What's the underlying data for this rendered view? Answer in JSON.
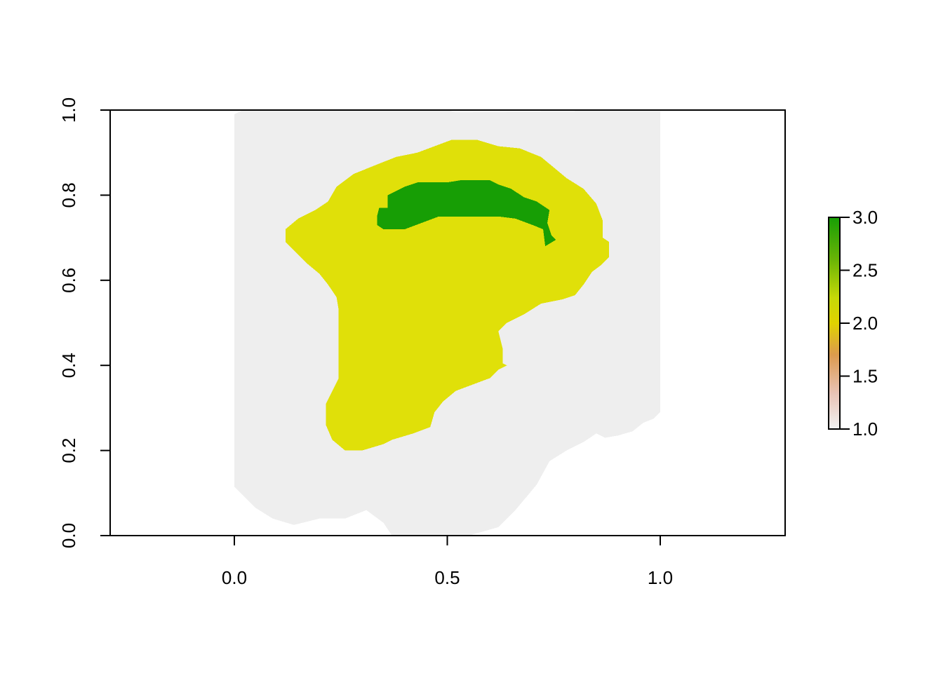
{
  "chart_data": {
    "type": "heatmap",
    "title": "",
    "xlabel": "",
    "ylabel": "",
    "xlim": [
      -0.29,
      1.29
    ],
    "ylim": [
      0,
      1
    ],
    "x_ticks": [
      "0.0",
      "0.5",
      "1.0"
    ],
    "y_ticks": [
      "0.0",
      "0.2",
      "0.4",
      "0.6",
      "0.8",
      "1.0"
    ],
    "grid": false,
    "legend": {
      "position": "right",
      "range": [
        1,
        3
      ],
      "ticks": [
        "1.0",
        "1.5",
        "2.0",
        "2.5",
        "3.0"
      ]
    },
    "colors": {
      "class_1": "#eeeeee",
      "class_2": "#e0e009",
      "class_3": "#179e05",
      "frame": "#000000"
    },
    "classes": [
      {
        "value": 1,
        "polygon": [
          [
            0.0,
            0.99
          ],
          [
            0.02,
            1.0
          ],
          [
            0.5,
            1.0
          ],
          [
            0.52,
            0.995
          ],
          [
            1.0,
            1.0
          ],
          [
            1.0,
            0.29
          ],
          [
            0.985,
            0.275
          ],
          [
            0.96,
            0.265
          ],
          [
            0.935,
            0.245
          ],
          [
            0.9,
            0.235
          ],
          [
            0.87,
            0.23
          ],
          [
            0.85,
            0.24
          ],
          [
            0.82,
            0.22
          ],
          [
            0.78,
            0.2
          ],
          [
            0.74,
            0.175
          ],
          [
            0.71,
            0.12
          ],
          [
            0.66,
            0.06
          ],
          [
            0.62,
            0.02
          ],
          [
            0.55,
            0.0
          ],
          [
            0.37,
            0.0
          ],
          [
            0.35,
            0.03
          ],
          [
            0.31,
            0.06
          ],
          [
            0.26,
            0.04
          ],
          [
            0.2,
            0.04
          ],
          [
            0.14,
            0.025
          ],
          [
            0.09,
            0.04
          ],
          [
            0.05,
            0.065
          ],
          [
            0.02,
            0.095
          ],
          [
            0.0,
            0.115
          ]
        ]
      },
      {
        "value": 2,
        "polygon": [
          [
            0.12,
            0.72
          ],
          [
            0.15,
            0.745
          ],
          [
            0.19,
            0.765
          ],
          [
            0.22,
            0.785
          ],
          [
            0.24,
            0.82
          ],
          [
            0.28,
            0.85
          ],
          [
            0.33,
            0.87
          ],
          [
            0.38,
            0.89
          ],
          [
            0.43,
            0.9
          ],
          [
            0.47,
            0.915
          ],
          [
            0.51,
            0.93
          ],
          [
            0.57,
            0.93
          ],
          [
            0.62,
            0.915
          ],
          [
            0.67,
            0.91
          ],
          [
            0.72,
            0.89
          ],
          [
            0.75,
            0.865
          ],
          [
            0.78,
            0.84
          ],
          [
            0.82,
            0.815
          ],
          [
            0.85,
            0.78
          ],
          [
            0.865,
            0.74
          ],
          [
            0.865,
            0.7
          ],
          [
            0.88,
            0.69
          ],
          [
            0.88,
            0.655
          ],
          [
            0.86,
            0.635
          ],
          [
            0.84,
            0.62
          ],
          [
            0.82,
            0.59
          ],
          [
            0.8,
            0.565
          ],
          [
            0.77,
            0.555
          ],
          [
            0.72,
            0.545
          ],
          [
            0.68,
            0.52
          ],
          [
            0.64,
            0.5
          ],
          [
            0.62,
            0.48
          ],
          [
            0.63,
            0.44
          ],
          [
            0.63,
            0.405
          ],
          [
            0.64,
            0.4
          ],
          [
            0.62,
            0.39
          ],
          [
            0.6,
            0.37
          ],
          [
            0.56,
            0.355
          ],
          [
            0.52,
            0.34
          ],
          [
            0.49,
            0.315
          ],
          [
            0.47,
            0.29
          ],
          [
            0.46,
            0.255
          ],
          [
            0.42,
            0.24
          ],
          [
            0.37,
            0.225
          ],
          [
            0.35,
            0.215
          ],
          [
            0.3,
            0.2
          ],
          [
            0.26,
            0.2
          ],
          [
            0.23,
            0.225
          ],
          [
            0.215,
            0.26
          ],
          [
            0.215,
            0.31
          ],
          [
            0.23,
            0.34
          ],
          [
            0.245,
            0.37
          ],
          [
            0.245,
            0.53
          ],
          [
            0.24,
            0.56
          ],
          [
            0.22,
            0.59
          ],
          [
            0.2,
            0.615
          ],
          [
            0.17,
            0.64
          ],
          [
            0.14,
            0.67
          ],
          [
            0.12,
            0.69
          ]
        ]
      },
      {
        "value": 3,
        "polygon": [
          [
            0.335,
            0.75
          ],
          [
            0.34,
            0.77
          ],
          [
            0.36,
            0.77
          ],
          [
            0.36,
            0.8
          ],
          [
            0.4,
            0.82
          ],
          [
            0.43,
            0.83
          ],
          [
            0.5,
            0.83
          ],
          [
            0.53,
            0.835
          ],
          [
            0.6,
            0.835
          ],
          [
            0.62,
            0.825
          ],
          [
            0.65,
            0.815
          ],
          [
            0.68,
            0.795
          ],
          [
            0.71,
            0.785
          ],
          [
            0.74,
            0.765
          ],
          [
            0.735,
            0.735
          ],
          [
            0.745,
            0.705
          ],
          [
            0.755,
            0.695
          ],
          [
            0.73,
            0.68
          ],
          [
            0.725,
            0.72
          ],
          [
            0.7,
            0.73
          ],
          [
            0.66,
            0.745
          ],
          [
            0.62,
            0.75
          ],
          [
            0.48,
            0.75
          ],
          [
            0.44,
            0.735
          ],
          [
            0.4,
            0.72
          ],
          [
            0.35,
            0.72
          ],
          [
            0.335,
            0.73
          ]
        ]
      }
    ]
  }
}
